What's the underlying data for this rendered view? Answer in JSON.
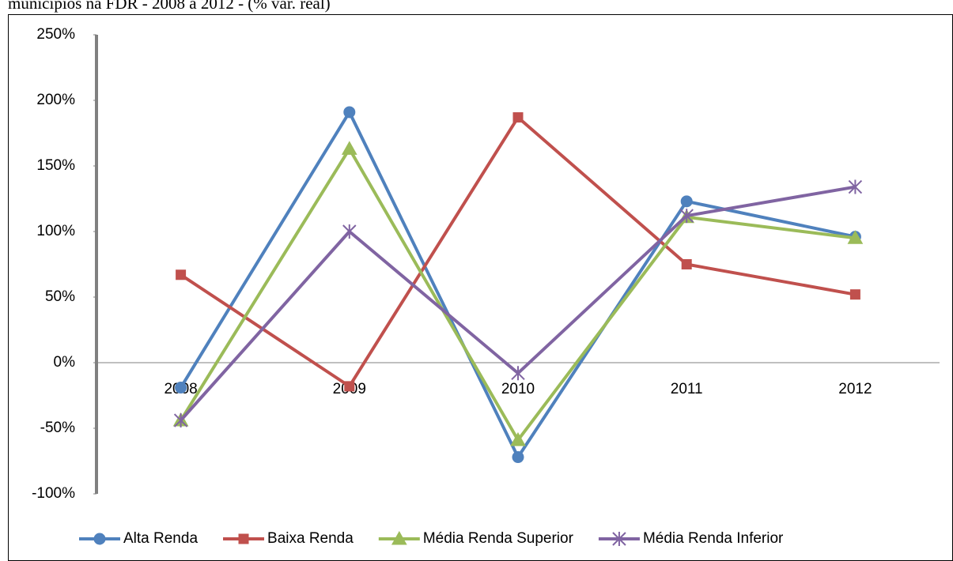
{
  "chart_data": {
    "type": "line",
    "title": "municípios na FDR - 2008 a 2012 - (% var. real)",
    "categories": [
      "2008",
      "2009",
      "2010",
      "2011",
      "2012"
    ],
    "series": [
      {
        "name": "Alta Renda",
        "color": "#4f81bd",
        "marker": "circle",
        "values": [
          -19,
          191,
          -72,
          123,
          96
        ]
      },
      {
        "name": "Baixa Renda",
        "color": "#c0504d",
        "marker": "square",
        "values": [
          67,
          -18,
          187,
          75,
          52
        ]
      },
      {
        "name": "Média Renda Superior",
        "color": "#9bbb59",
        "marker": "triangle",
        "values": [
          -44,
          163,
          -59,
          111,
          95
        ]
      },
      {
        "name": "Média Renda Inferior",
        "color": "#8064a2",
        "marker": "star",
        "values": [
          -44,
          100,
          -8,
          112,
          134
        ]
      }
    ],
    "ylim": [
      -100,
      250
    ],
    "yticks": [
      {
        "value": -100,
        "label": "-100%"
      },
      {
        "value": -50,
        "label": "-50%"
      },
      {
        "value": 0,
        "label": "0%"
      },
      {
        "value": 50,
        "label": "50%"
      },
      {
        "value": 100,
        "label": "100%"
      },
      {
        "value": 150,
        "label": "150%"
      },
      {
        "value": 200,
        "label": "200%"
      },
      {
        "value": 250,
        "label": "250%"
      }
    ],
    "legend": "bottom"
  }
}
